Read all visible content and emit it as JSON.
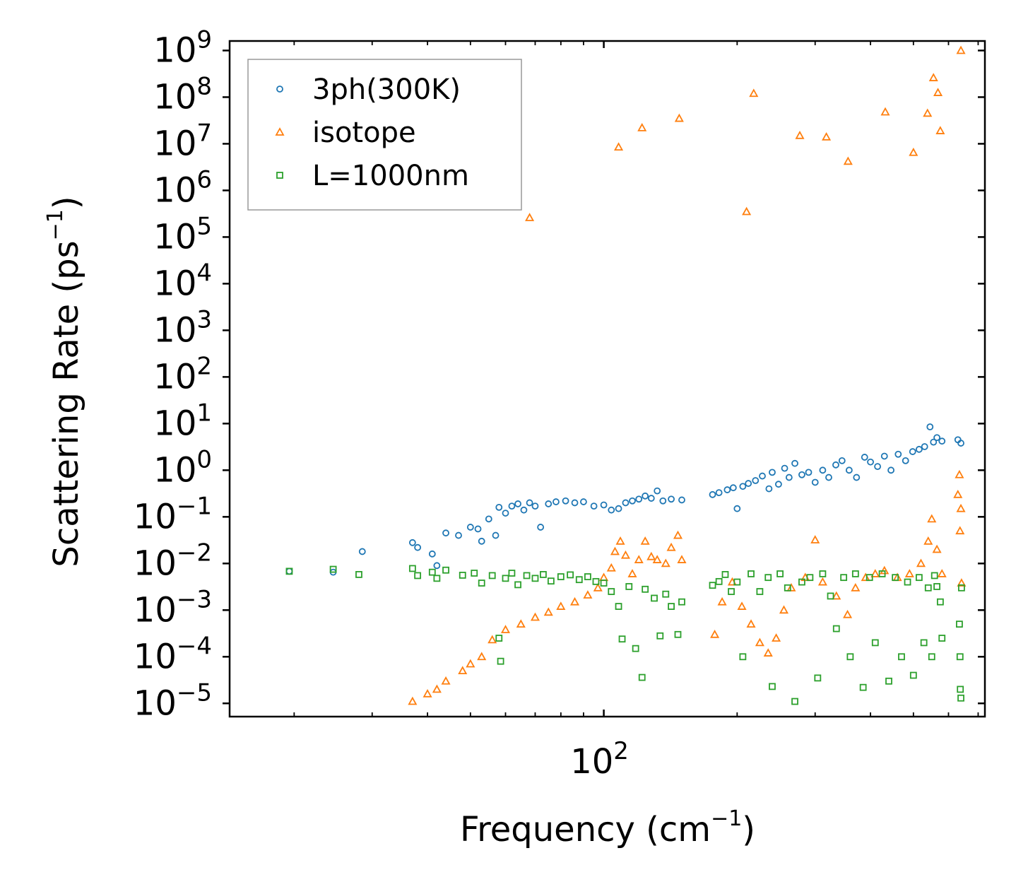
{
  "chart_data": {
    "type": "scatter",
    "title": "",
    "xlabel": "Frequency (cm",
    "xlabel_sup": "−1",
    "xlabel_end": ")",
    "ylabel": "Scattering Rate (ps",
    "ylabel_sup": "−1",
    "ylabel_end": ")",
    "xscale": "log",
    "yscale": "log",
    "xlim": [
      14.3,
      725
    ],
    "ylim": [
      5.2e-06,
      1600000000.0
    ],
    "x_tick_label": {
      "value": 100,
      "base": "10",
      "exp": "2"
    },
    "y_tick_labels": [
      {
        "value": 1000000000.0,
        "base": "10",
        "exp": "9"
      },
      {
        "value": 100000000.0,
        "base": "10",
        "exp": "8"
      },
      {
        "value": 10000000.0,
        "base": "10",
        "exp": "7"
      },
      {
        "value": 1000000.0,
        "base": "10",
        "exp": "6"
      },
      {
        "value": 100000.0,
        "base": "10",
        "exp": "5"
      },
      {
        "value": 10000.0,
        "base": "10",
        "exp": "4"
      },
      {
        "value": 1000.0,
        "base": "10",
        "exp": "3"
      },
      {
        "value": 100.0,
        "base": "10",
        "exp": "2"
      },
      {
        "value": 10.0,
        "base": "10",
        "exp": "1"
      },
      {
        "value": 1.0,
        "base": "10",
        "exp": "0"
      },
      {
        "value": 0.1,
        "base": "10",
        "exp": "−1"
      },
      {
        "value": 0.01,
        "base": "10",
        "exp": "−2"
      },
      {
        "value": 0.001,
        "base": "10",
        "exp": "−3"
      },
      {
        "value": 0.0001,
        "base": "10",
        "exp": "−4"
      },
      {
        "value": 1e-05,
        "base": "10",
        "exp": "−5"
      }
    ],
    "legend_position": "top-left",
    "series": [
      {
        "name": "3ph(300K)",
        "marker": "circle",
        "color": "#1f77b4",
        "points": [
          [
            19.5,
            0.0068
          ],
          [
            24.5,
            0.0065
          ],
          [
            28.5,
            0.018
          ],
          [
            37,
            0.028
          ],
          [
            38,
            0.022
          ],
          [
            41,
            0.016
          ],
          [
            42,
            0.009
          ],
          [
            44,
            0.045
          ],
          [
            47,
            0.04
          ],
          [
            50,
            0.06
          ],
          [
            52,
            0.055
          ],
          [
            53,
            0.03
          ],
          [
            55,
            0.09
          ],
          [
            57,
            0.04
          ],
          [
            58,
            0.16
          ],
          [
            60,
            0.12
          ],
          [
            62,
            0.17
          ],
          [
            64,
            0.19
          ],
          [
            66,
            0.14
          ],
          [
            68,
            0.2
          ],
          [
            70,
            0.17
          ],
          [
            72,
            0.06
          ],
          [
            75,
            0.19
          ],
          [
            78,
            0.21
          ],
          [
            82,
            0.22
          ],
          [
            86,
            0.2
          ],
          [
            90,
            0.21
          ],
          [
            95,
            0.17
          ],
          [
            100,
            0.18
          ],
          [
            104,
            0.14
          ],
          [
            108,
            0.15
          ],
          [
            112,
            0.2
          ],
          [
            116,
            0.22
          ],
          [
            120,
            0.24
          ],
          [
            124,
            0.28
          ],
          [
            128,
            0.25
          ],
          [
            132,
            0.36
          ],
          [
            136,
            0.22
          ],
          [
            142,
            0.24
          ],
          [
            150,
            0.23
          ],
          [
            176,
            0.3
          ],
          [
            182,
            0.33
          ],
          [
            190,
            0.38
          ],
          [
            196,
            0.42
          ],
          [
            200,
            0.15
          ],
          [
            206,
            0.45
          ],
          [
            212,
            0.52
          ],
          [
            220,
            0.6
          ],
          [
            228,
            0.75
          ],
          [
            236,
            0.4
          ],
          [
            240,
            0.9
          ],
          [
            248,
            0.5
          ],
          [
            256,
            1.1
          ],
          [
            262,
            0.7
          ],
          [
            270,
            1.4
          ],
          [
            280,
            0.8
          ],
          [
            290,
            0.9
          ],
          [
            300,
            0.55
          ],
          [
            312,
            1.0
          ],
          [
            322,
            0.7
          ],
          [
            334,
            1.3
          ],
          [
            345,
            1.6
          ],
          [
            358,
            1.0
          ],
          [
            372,
            0.7
          ],
          [
            388,
            1.9
          ],
          [
            400,
            1.5
          ],
          [
            415,
            1.2
          ],
          [
            430,
            2.0
          ],
          [
            445,
            1.0
          ],
          [
            462,
            2.2
          ],
          [
            480,
            1.6
          ],
          [
            498,
            2.5
          ],
          [
            515,
            2.8
          ],
          [
            530,
            3.2
          ],
          [
            545,
            8.5
          ],
          [
            555,
            4.0
          ],
          [
            565,
            5.0
          ],
          [
            580,
            4.2
          ],
          [
            630,
            4.5
          ],
          [
            640,
            3.8
          ]
        ]
      },
      {
        "name": "isotope",
        "marker": "triangle",
        "color": "#ff7f0e",
        "points": [
          [
            37,
            1.1e-05
          ],
          [
            40,
            1.6e-05
          ],
          [
            42,
            2e-05
          ],
          [
            44,
            3e-05
          ],
          [
            48,
            5e-05
          ],
          [
            50,
            7e-05
          ],
          [
            53,
            0.0001
          ],
          [
            56,
            0.00023
          ],
          [
            60,
            0.00038
          ],
          [
            65,
            0.0005
          ],
          [
            70,
            0.0007
          ],
          [
            75,
            0.0009
          ],
          [
            80,
            0.0012
          ],
          [
            86,
            0.0015
          ],
          [
            92,
            0.0021
          ],
          [
            97,
            0.003
          ],
          [
            100,
            0.005
          ],
          [
            104,
            0.008
          ],
          [
            106,
            0.018
          ],
          [
            109,
            0.03
          ],
          [
            112,
            0.015
          ],
          [
            116,
            0.006
          ],
          [
            120,
            0.012
          ],
          [
            124,
            0.03
          ],
          [
            128,
            0.014
          ],
          [
            132,
            0.012
          ],
          [
            138,
            0.01
          ],
          [
            142,
            0.022
          ],
          [
            147,
            0.04
          ],
          [
            150,
            0.012
          ],
          [
            178,
            0.0003
          ],
          [
            185,
            0.0015
          ],
          [
            195,
            0.004
          ],
          [
            205,
            0.0012
          ],
          [
            215,
            0.0005
          ],
          [
            225,
            0.0002
          ],
          [
            235,
            0.00012
          ],
          [
            245,
            0.00025
          ],
          [
            255,
            0.001
          ],
          [
            265,
            0.003
          ],
          [
            285,
            0.005
          ],
          [
            300,
            0.032
          ],
          [
            312,
            0.004
          ],
          [
            335,
            0.002
          ],
          [
            355,
            0.0008
          ],
          [
            370,
            0.003
          ],
          [
            390,
            0.005
          ],
          [
            410,
            0.006
          ],
          [
            430,
            0.007
          ],
          [
            460,
            0.005
          ],
          [
            490,
            0.006
          ],
          [
            520,
            0.01
          ],
          [
            540,
            0.03
          ],
          [
            550,
            0.09
          ],
          [
            565,
            0.02
          ],
          [
            580,
            0.006
          ],
          [
            630,
            0.3
          ],
          [
            635,
            0.8
          ],
          [
            637,
            0.05
          ],
          [
            640,
            0.15
          ],
          [
            642,
            0.0038
          ],
          [
            68,
            260000.0
          ],
          [
            108,
            8500000.0
          ],
          [
            122,
            22000000.0
          ],
          [
            148,
            35000000.0
          ],
          [
            210,
            350000.0
          ],
          [
            218,
            120000000.0
          ],
          [
            277,
            15000000.0
          ],
          [
            318,
            14000000.0
          ],
          [
            356,
            4200000.0
          ],
          [
            432,
            48000000.0
          ],
          [
            500,
            6500000.0
          ],
          [
            538,
            45000000.0
          ],
          [
            555,
            260000000.0
          ],
          [
            568,
            125000000.0
          ],
          [
            575,
            19000000.0
          ],
          [
            640,
            1000000000.0
          ]
        ]
      },
      {
        "name": "L=1000nm",
        "marker": "square",
        "color": "#2ca02c",
        "points": [
          [
            19.5,
            0.0068
          ],
          [
            24.5,
            0.0075
          ],
          [
            28,
            0.0058
          ],
          [
            37,
            0.0078
          ],
          [
            38,
            0.0055
          ],
          [
            41,
            0.0065
          ],
          [
            42,
            0.0048
          ],
          [
            44,
            0.0072
          ],
          [
            48,
            0.0056
          ],
          [
            51,
            0.0062
          ],
          [
            53,
            0.0038
          ],
          [
            56,
            0.0055
          ],
          [
            58,
            0.00025
          ],
          [
            58.5,
            8e-05
          ],
          [
            60,
            0.0048
          ],
          [
            62,
            0.0062
          ],
          [
            64,
            0.0035
          ],
          [
            67,
            0.0055
          ],
          [
            70,
            0.0048
          ],
          [
            73,
            0.0058
          ],
          [
            76,
            0.0042
          ],
          [
            80,
            0.0052
          ],
          [
            84,
            0.0057
          ],
          [
            88,
            0.0045
          ],
          [
            92,
            0.0052
          ],
          [
            96,
            0.0041
          ],
          [
            100,
            0.0038
          ],
          [
            104,
            0.0025
          ],
          [
            108,
            0.0012
          ],
          [
            110,
            0.00024
          ],
          [
            114,
            0.0032
          ],
          [
            118,
            0.00015
          ],
          [
            122,
            3.6e-05
          ],
          [
            124,
            0.0028
          ],
          [
            130,
            0.0018
          ],
          [
            134,
            0.00028
          ],
          [
            138,
            0.0022
          ],
          [
            142,
            0.0012
          ],
          [
            147,
            0.0003
          ],
          [
            150,
            0.0015
          ],
          [
            176,
            0.0034
          ],
          [
            182,
            0.0041
          ],
          [
            188,
            0.0058
          ],
          [
            194,
            0.0025
          ],
          [
            200,
            0.004
          ],
          [
            206,
            0.0001
          ],
          [
            215,
            0.006
          ],
          [
            225,
            0.0025
          ],
          [
            235,
            0.005
          ],
          [
            240,
            2.3e-05
          ],
          [
            250,
            0.006
          ],
          [
            260,
            0.003
          ],
          [
            270,
            1.1e-05
          ],
          [
            280,
            0.004
          ],
          [
            292,
            0.005
          ],
          [
            304,
            3.5e-05
          ],
          [
            312,
            0.006
          ],
          [
            325,
            0.002
          ],
          [
            335,
            0.0004
          ],
          [
            348,
            0.005
          ],
          [
            360,
            0.0001
          ],
          [
            370,
            0.006
          ],
          [
            385,
            2.2e-05
          ],
          [
            398,
            0.005
          ],
          [
            410,
            0.0002
          ],
          [
            425,
            0.006
          ],
          [
            440,
            3e-05
          ],
          [
            455,
            0.005
          ],
          [
            470,
            0.0001
          ],
          [
            485,
            0.004
          ],
          [
            500,
            4e-05
          ],
          [
            515,
            0.005
          ],
          [
            528,
            0.0002
          ],
          [
            540,
            0.003
          ],
          [
            550,
            0.0001
          ],
          [
            558,
            0.0055
          ],
          [
            565,
            0.0032
          ],
          [
            575,
            0.0015
          ],
          [
            580,
            0.00025
          ],
          [
            635,
            0.0005
          ],
          [
            637,
            0.0001
          ],
          [
            638,
            2e-05
          ],
          [
            640,
            1.3e-05
          ],
          [
            642,
            0.003
          ]
        ]
      }
    ]
  }
}
